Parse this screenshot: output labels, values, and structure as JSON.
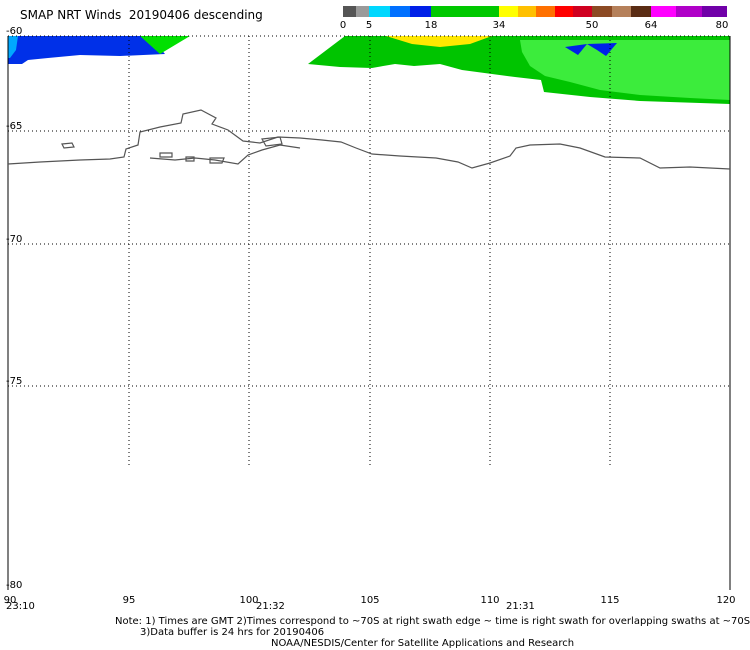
{
  "title": "SMAP NRT Winds  20190406 descending",
  "colorbar": {
    "segments": [
      {
        "from": 0,
        "to": 5,
        "colors": [
          "#555555",
          "#9a9a9a"
        ]
      },
      {
        "from": 5,
        "to": 18,
        "colors": [
          "#00d8ff",
          "#0070ff",
          "#0020e8"
        ]
      },
      {
        "from": 18,
        "to": 34,
        "colors": [
          "#00c800"
        ]
      },
      {
        "from": 34,
        "to": 50,
        "colors": [
          "#ffff00",
          "#ffc000",
          "#ff7000",
          "#ff0000",
          "#d00020"
        ]
      },
      {
        "from": 50,
        "to": 64,
        "colors": [
          "#8c4a24",
          "#b5805a",
          "#5a2c14"
        ]
      },
      {
        "from": 64,
        "to": 80,
        "colors": [
          "#ff00ff",
          "#b000c8",
          "#7000a8"
        ]
      }
    ],
    "labels": [
      "0",
      "5",
      "18",
      "34",
      "50",
      "64",
      "80"
    ]
  },
  "map": {
    "lon_range": [
      90,
      120
    ],
    "lat_range": [
      -60,
      -80
    ],
    "lon_ticks": [
      "90",
      "95",
      "100",
      "105",
      "110",
      "115",
      "120"
    ],
    "lat_ticks": [
      "-60",
      "-65",
      "-70",
      "-75",
      "-80"
    ],
    "grid": "dotted"
  },
  "swath_times": [
    "23:10",
    "21:32",
    "21:31"
  ],
  "notes": {
    "line1": "Note: 1) Times are GMT 2)Times correspond to ~70S at right swath edge ~ time is right swath for overlapping swaths at ~70S",
    "line2": "3)Data buffer is 24 hrs for 20190406",
    "credit": "NOAA/NESDIS/Center for Satellite Applications and Research"
  }
}
